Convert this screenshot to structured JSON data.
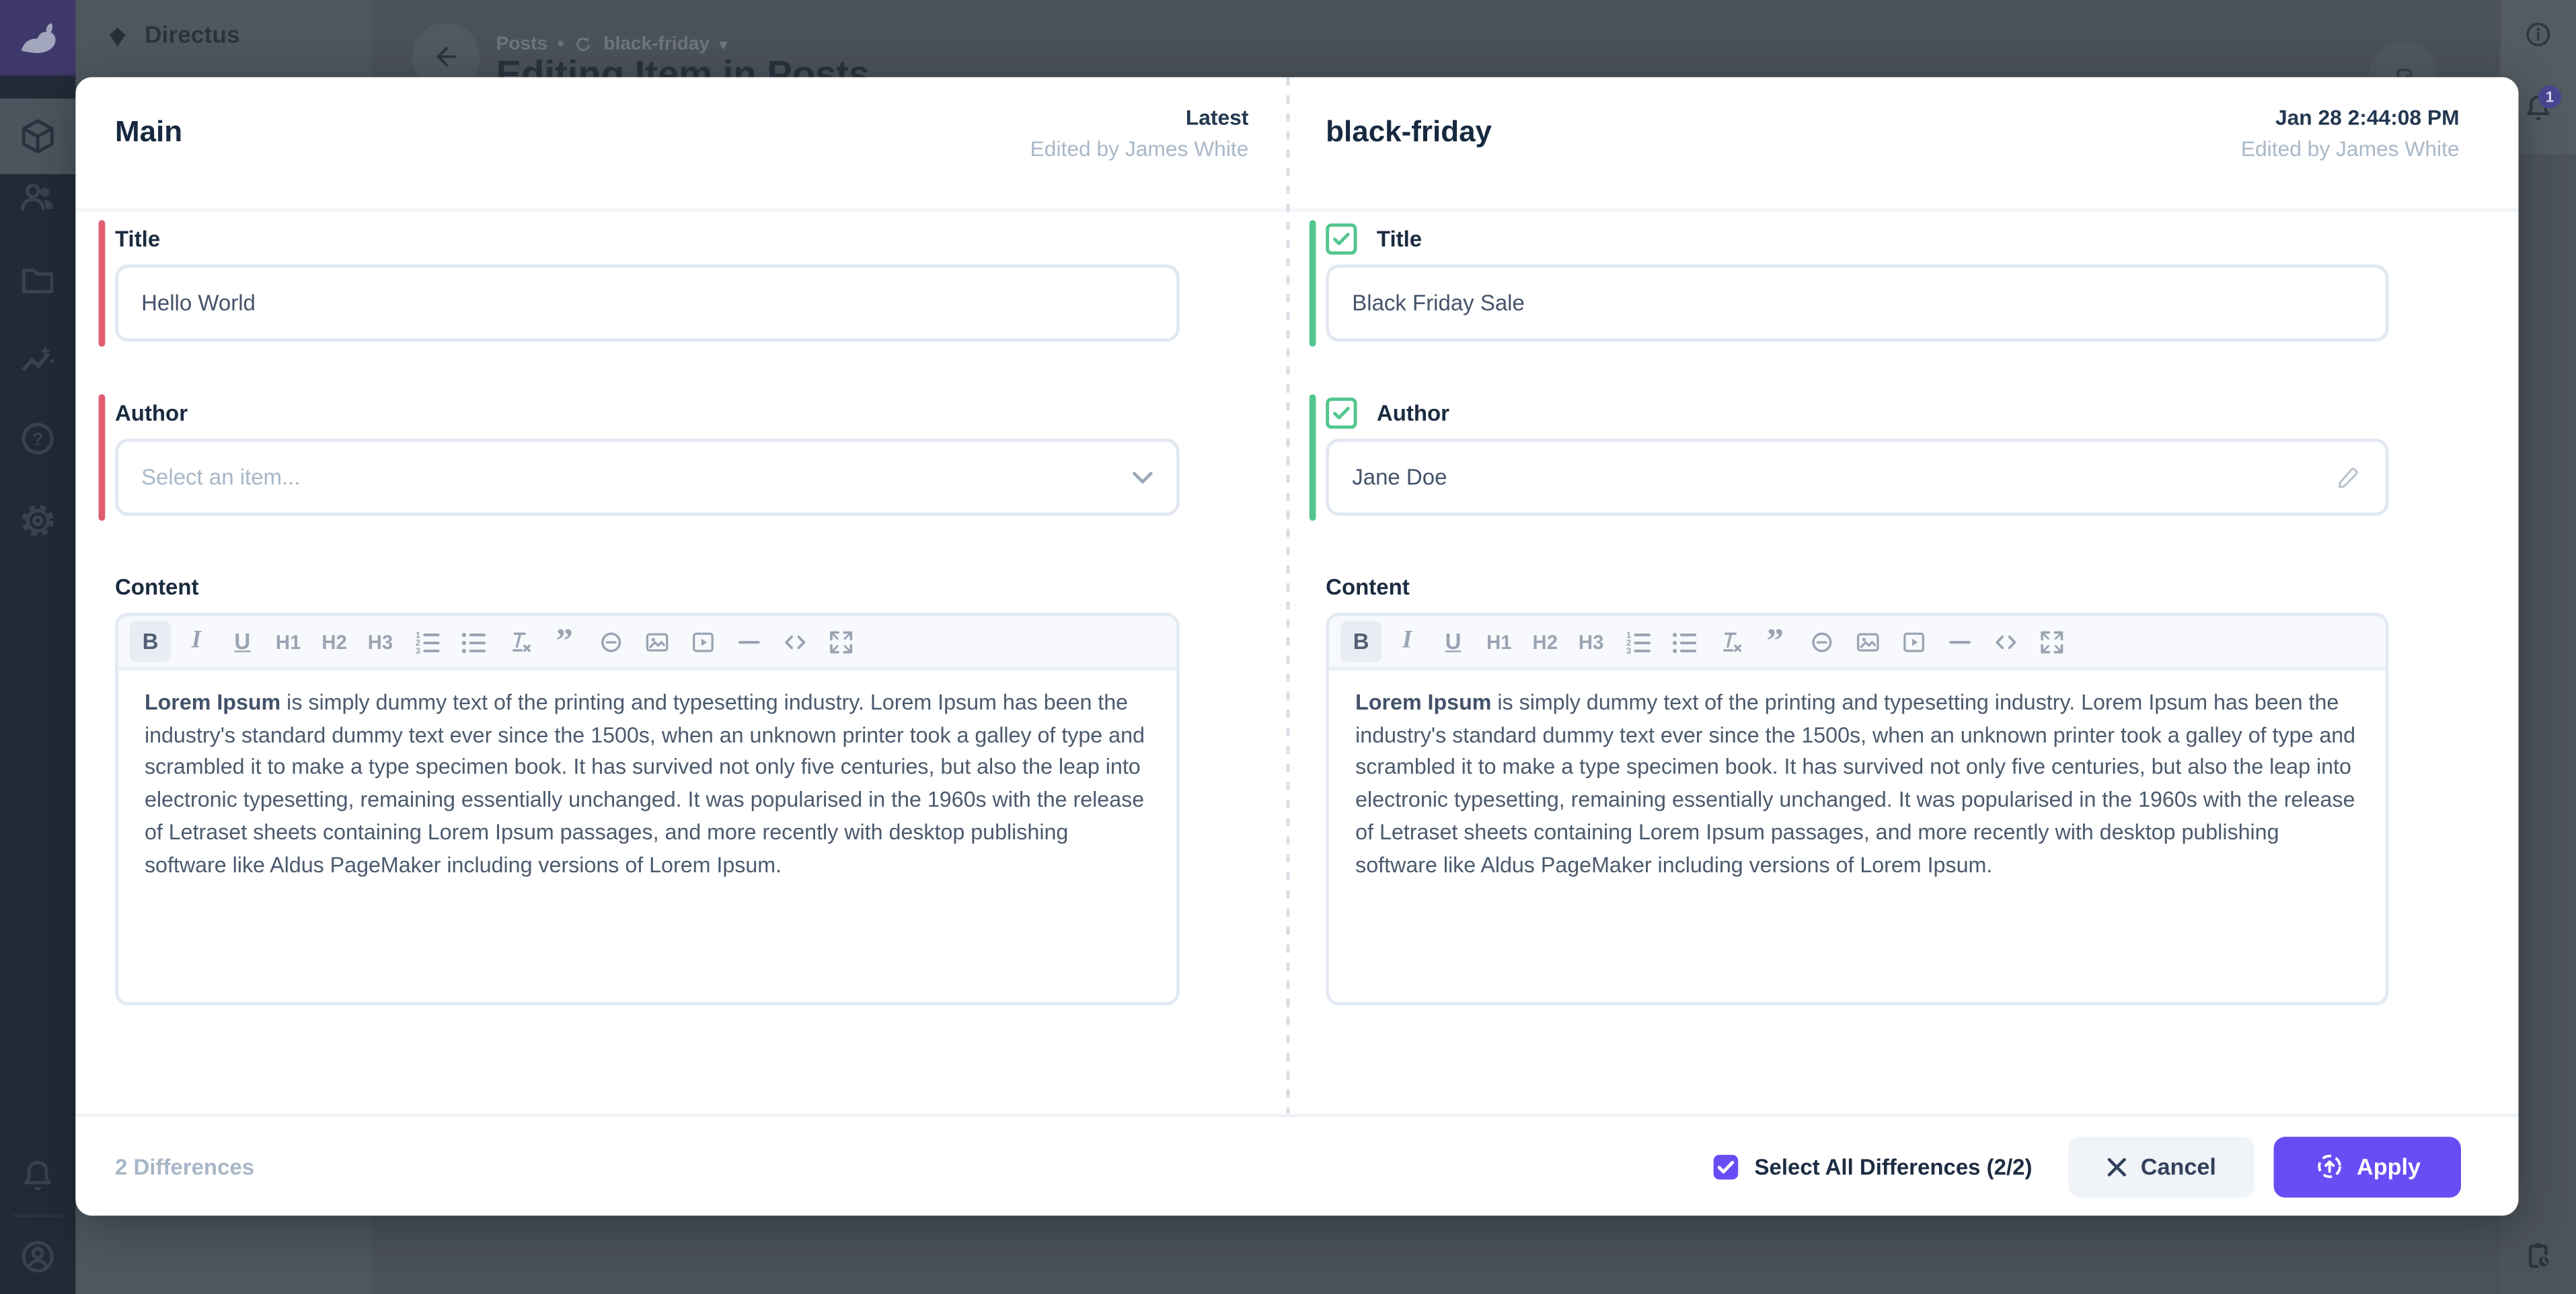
{
  "chrome": {
    "project_name": "Directus",
    "breadcrumb": {
      "collection": "Posts",
      "separator": "•",
      "version": "black-friday",
      "caret": "▾"
    },
    "page_title": "Editing Item in Posts",
    "notification_count": "1"
  },
  "modal": {
    "left_panel": {
      "title": "Main",
      "badge": "Latest",
      "edited_by": "Edited by James White",
      "fields": {
        "title": {
          "label": "Title",
          "value": "Hello World"
        },
        "author": {
          "label": "Author",
          "placeholder": "Select an item..."
        },
        "content": {
          "label": "Content"
        }
      }
    },
    "right_panel": {
      "title": "black-friday",
      "timestamp": "Jan 28 2:44:08 PM",
      "edited_by": "Edited by James White",
      "fields": {
        "title": {
          "label": "Title",
          "value": "Black Friday Sale"
        },
        "author": {
          "label": "Author",
          "value": "Jane Doe"
        },
        "content": {
          "label": "Content"
        }
      }
    },
    "footer": {
      "differences": "2 Differences",
      "select_all": "Select All Differences (2/2)",
      "cancel": "Cancel",
      "apply": "Apply"
    }
  },
  "editor": {
    "toolbar": [
      {
        "name": "bold",
        "label": "B",
        "active": true
      },
      {
        "name": "italic",
        "label": "I"
      },
      {
        "name": "underline",
        "label": "U"
      },
      {
        "name": "h1",
        "label": "H1"
      },
      {
        "name": "h2",
        "label": "H2"
      },
      {
        "name": "h3",
        "label": "H3"
      },
      {
        "name": "numbered-list",
        "icon": "ol"
      },
      {
        "name": "bullet-list",
        "icon": "ul"
      },
      {
        "name": "remove-format",
        "icon": "clearfmt"
      },
      {
        "name": "blockquote",
        "icon": "quote"
      },
      {
        "name": "link",
        "icon": "link"
      },
      {
        "name": "image",
        "icon": "image"
      },
      {
        "name": "media",
        "icon": "media"
      },
      {
        "name": "horizontal-rule",
        "icon": "hr"
      },
      {
        "name": "code",
        "icon": "code"
      },
      {
        "name": "fullscreen",
        "icon": "fullscreen"
      }
    ],
    "content_lead": "Lorem Ipsum",
    "content_body": " is simply dummy text of the printing and typesetting industry. Lorem Ipsum has been the industry's standard dummy text ever since the 1500s, when an unknown printer took a galley of type and scrambled it to make a type specimen book. It has survived not only five centuries, but also the leap into electronic typesetting, remaining essentially unchanged. It was popularised in the 1960s with the release of Letraset sheets containing Lorem Ipsum passages, and more recently with desktop publishing software like Aldus PageMaker including versions of Lorem Ipsum."
  },
  "colors": {
    "accent": "#6a4cf5",
    "added": "#52c68d",
    "removed": "#e05c6e"
  }
}
